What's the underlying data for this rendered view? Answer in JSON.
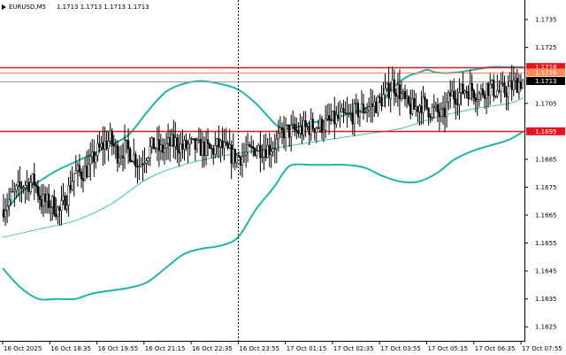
{
  "header": {
    "symbol": "EURUSD,M5",
    "ohlc": "1.1713 1.1713 1.1713 1.1713"
  },
  "colors": {
    "bollinger": "#1fb5a6",
    "moving_average": "#45c2b6",
    "level_line": "#e8131c",
    "bid_line": "#9e9e9e",
    "ask_line": "#ff8c5a",
    "candle": "#000000",
    "background": "#ffffff"
  },
  "chart_data": {
    "type": "candlestick",
    "title": "EURUSD,M5",
    "grid": false,
    "ylim": [
      1.162,
      1.1742
    ],
    "y_ticks": [
      "1.1735",
      "1.1725",
      "1.1705",
      "1.1685",
      "1.1675",
      "1.1665",
      "1.1655",
      "1.1645",
      "1.1635",
      "1.1625"
    ],
    "x_ticks": [
      "16 Oct 2025",
      "16 Oct 18:35",
      "16 Oct 19:55",
      "16 Oct 21:15",
      "16 Oct 22:35",
      "16 Oct 23:55",
      "17 Oct 01:15",
      "17 Oct 02:35",
      "17 Oct 03:55",
      "17 Oct 05:15",
      "17 Oct 06:35",
      "17 Oct 07:55"
    ],
    "period_separator": "16 Oct 23:55",
    "price_tags": [
      {
        "label": "1.1718",
        "value": 1.1718,
        "kind": "level"
      },
      {
        "label": "1.1716",
        "value": 1.1716,
        "kind": "ask"
      },
      {
        "label": "1.1713",
        "value": 1.1713,
        "kind": "bid"
      },
      {
        "label": "1.1695",
        "value": 1.1695,
        "kind": "level"
      }
    ],
    "horizontal_levels": [
      1.1718,
      1.1695
    ],
    "bollinger_upper": [
      [
        0,
        1.1665
      ],
      [
        10,
        1.1673
      ],
      [
        20,
        1.1677
      ],
      [
        30,
        1.1681
      ],
      [
        40,
        1.1684
      ],
      [
        50,
        1.1687
      ],
      [
        60,
        1.169
      ],
      [
        70,
        1.1694
      ],
      [
        80,
        1.1702
      ],
      [
        90,
        1.1709
      ],
      [
        100,
        1.1712
      ],
      [
        110,
        1.1713
      ],
      [
        120,
        1.1712
      ],
      [
        130,
        1.171
      ],
      [
        140,
        1.1705
      ],
      [
        150,
        1.1698
      ],
      [
        155,
        1.1696
      ],
      [
        160,
        1.1696
      ],
      [
        170,
        1.1698
      ],
      [
        180,
        1.1699
      ],
      [
        190,
        1.1701
      ],
      [
        200,
        1.1703
      ],
      [
        210,
        1.1706
      ],
      [
        215,
        1.171
      ],
      [
        220,
        1.1713
      ],
      [
        225,
        1.1715
      ],
      [
        230,
        1.1716
      ],
      [
        235,
        1.1717
      ],
      [
        240,
        1.1716
      ],
      [
        250,
        1.1716
      ],
      [
        260,
        1.1717
      ],
      [
        270,
        1.1718
      ],
      [
        280,
        1.1718
      ],
      [
        288,
        1.1718
      ]
    ],
    "bollinger_lower": [
      [
        0,
        1.1646
      ],
      [
        10,
        1.1639
      ],
      [
        20,
        1.1635
      ],
      [
        30,
        1.1635
      ],
      [
        40,
        1.1635
      ],
      [
        50,
        1.1637
      ],
      [
        60,
        1.1638
      ],
      [
        70,
        1.1639
      ],
      [
        80,
        1.1641
      ],
      [
        90,
        1.1646
      ],
      [
        100,
        1.1651
      ],
      [
        110,
        1.1653
      ],
      [
        120,
        1.1654
      ],
      [
        130,
        1.1657
      ],
      [
        140,
        1.1667
      ],
      [
        150,
        1.1675
      ],
      [
        155,
        1.168
      ],
      [
        160,
        1.1683
      ],
      [
        170,
        1.1683
      ],
      [
        180,
        1.1683
      ],
      [
        190,
        1.1683
      ],
      [
        200,
        1.1682
      ],
      [
        210,
        1.1679
      ],
      [
        220,
        1.1677
      ],
      [
        230,
        1.1677
      ],
      [
        240,
        1.168
      ],
      [
        250,
        1.1685
      ],
      [
        260,
        1.1688
      ],
      [
        270,
        1.169
      ],
      [
        280,
        1.1692
      ],
      [
        288,
        1.1695
      ]
    ],
    "moving_average": [
      [
        0,
        1.1657
      ],
      [
        20,
        1.166
      ],
      [
        40,
        1.1663
      ],
      [
        60,
        1.1669
      ],
      [
        80,
        1.1678
      ],
      [
        100,
        1.1683
      ],
      [
        120,
        1.1686
      ],
      [
        140,
        1.1688
      ],
      [
        160,
        1.169
      ],
      [
        180,
        1.1692
      ],
      [
        200,
        1.1694
      ],
      [
        220,
        1.1696
      ],
      [
        240,
        1.17
      ],
      [
        260,
        1.1703
      ],
      [
        280,
        1.1705
      ],
      [
        288,
        1.1707
      ]
    ],
    "price_path": [
      [
        0,
        1.1667
      ],
      [
        6,
        1.1672
      ],
      [
        12,
        1.1676
      ],
      [
        18,
        1.1677
      ],
      [
        22,
        1.167
      ],
      [
        28,
        1.1669
      ],
      [
        32,
        1.1666
      ],
      [
        36,
        1.1672
      ],
      [
        40,
        1.168
      ],
      [
        44,
        1.168
      ],
      [
        48,
        1.1682
      ],
      [
        52,
        1.1687
      ],
      [
        56,
        1.169
      ],
      [
        60,
        1.1692
      ],
      [
        64,
        1.1687
      ],
      [
        68,
        1.1689
      ],
      [
        72,
        1.1687
      ],
      [
        76,
        1.1683
      ],
      [
        80,
        1.1687
      ],
      [
        84,
        1.169
      ],
      [
        88,
        1.1688
      ],
      [
        92,
        1.169
      ],
      [
        96,
        1.1691
      ],
      [
        100,
        1.1689
      ],
      [
        104,
        1.169
      ],
      [
        108,
        1.1689
      ],
      [
        112,
        1.1689
      ],
      [
        116,
        1.1688
      ],
      [
        120,
        1.169
      ],
      [
        124,
        1.1688
      ],
      [
        128,
        1.1686
      ],
      [
        132,
        1.1686
      ],
      [
        136,
        1.1687
      ],
      [
        140,
        1.1689
      ],
      [
        144,
        1.1689
      ],
      [
        148,
        1.1689
      ],
      [
        152,
        1.1691
      ],
      [
        156,
        1.1695
      ],
      [
        160,
        1.1695
      ],
      [
        164,
        1.1695
      ],
      [
        168,
        1.1696
      ],
      [
        172,
        1.1697
      ],
      [
        176,
        1.1697
      ],
      [
        180,
        1.1698
      ],
      [
        184,
        1.1699
      ],
      [
        188,
        1.17
      ],
      [
        192,
        1.17
      ],
      [
        196,
        1.1702
      ],
      [
        200,
        1.1703
      ],
      [
        204,
        1.1704
      ],
      [
        208,
        1.1705
      ],
      [
        212,
        1.1708
      ],
      [
        216,
        1.1712
      ],
      [
        220,
        1.1709
      ],
      [
        224,
        1.1704
      ],
      [
        228,
        1.1703
      ],
      [
        232,
        1.1705
      ],
      [
        236,
        1.1703
      ],
      [
        240,
        1.1702
      ],
      [
        244,
        1.17
      ],
      [
        248,
        1.1708
      ],
      [
        252,
        1.1708
      ],
      [
        256,
        1.171
      ],
      [
        260,
        1.171
      ],
      [
        264,
        1.1708
      ],
      [
        268,
        1.1711
      ],
      [
        272,
        1.171
      ],
      [
        276,
        1.1709
      ],
      [
        280,
        1.171
      ],
      [
        284,
        1.1712
      ],
      [
        288,
        1.1713
      ]
    ]
  }
}
